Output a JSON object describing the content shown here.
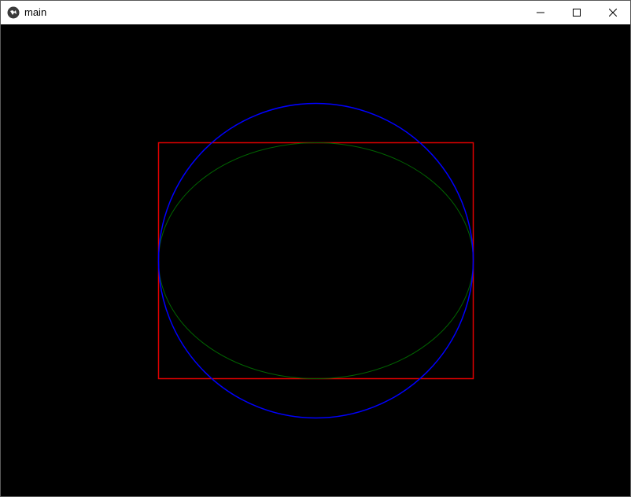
{
  "window": {
    "title": "main",
    "icon": "kivy-logo-icon",
    "controls": {
      "minimize": "minimize-icon",
      "maximize": "maximize-icon",
      "close": "close-icon"
    }
  },
  "canvas": {
    "background": "#000000",
    "shapes": [
      {
        "name": "rectangle",
        "stroke": "#e00000"
      },
      {
        "name": "circle",
        "stroke": "#0000ff"
      },
      {
        "name": "ellipse",
        "stroke": "#006400"
      }
    ]
  }
}
